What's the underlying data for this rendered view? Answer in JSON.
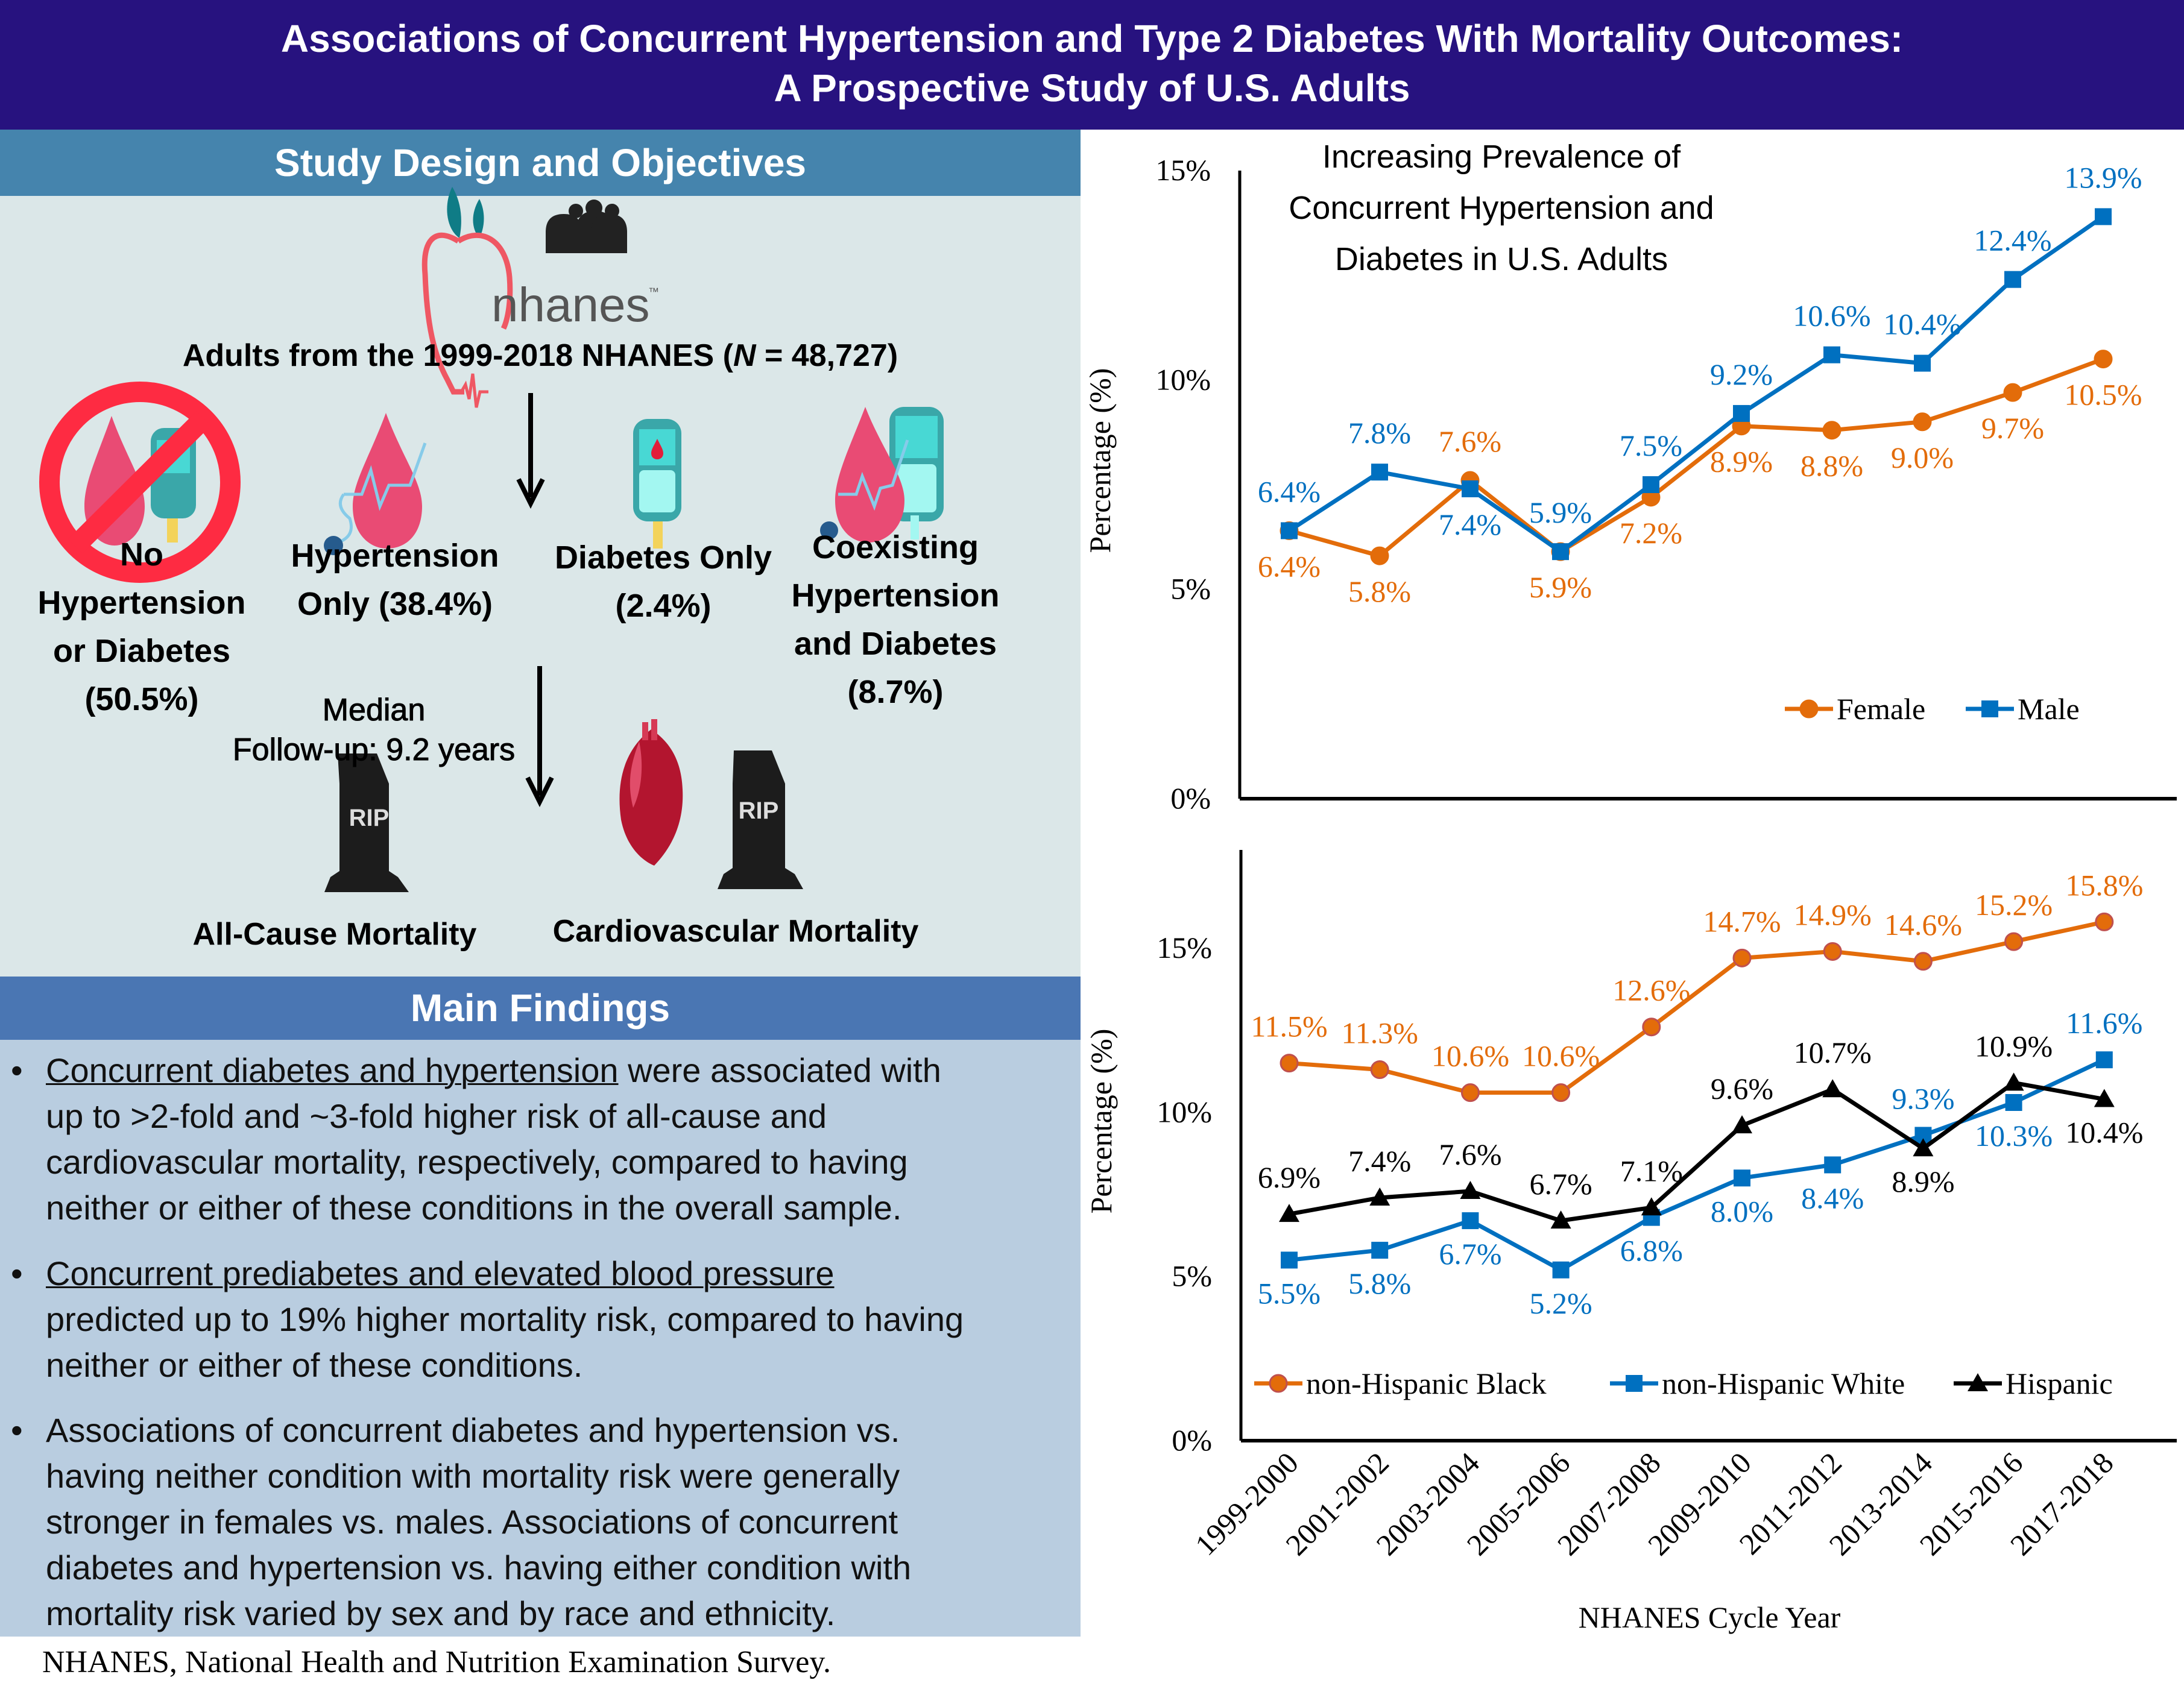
{
  "header": {
    "title_line1": "Associations of Concurrent Hypertension and Type 2 Diabetes With Mortality Outcomes:",
    "title_line2": "A Prospective Study of U.S. Adults"
  },
  "study_design": {
    "heading": "Study Design and Objectives",
    "logo_text": "nhanes",
    "logo_tm": "™",
    "population": "Adults from the 1999-2018 NHANES (",
    "population_n": "N",
    "population_rest": " = 48,727)",
    "groups": [
      {
        "lines": [
          "No",
          "Hypertension",
          "or Diabetes",
          "(50.5%)"
        ],
        "icon": "no-hypertension-diabetes-icon"
      },
      {
        "lines": [
          "Hypertension",
          "Only (38.4%)"
        ],
        "icon": "hypertension-icon"
      },
      {
        "lines": [
          "Diabetes Only",
          "(2.4%)"
        ],
        "icon": "glucometer-icon"
      },
      {
        "lines": [
          "Coexisting",
          "Hypertension",
          "and Diabetes",
          "(8.7%)"
        ],
        "icon": "hypertension-diabetes-icon"
      }
    ],
    "followup_line1": "Median",
    "followup_line2": "Follow-up: 9.2 years",
    "rip_text": "RIP",
    "outcomes": [
      "All-Cause Mortality",
      "Cardiovascular Mortality"
    ]
  },
  "main_findings": {
    "heading": "Main Findings",
    "bullets": [
      {
        "underlined": "Concurrent diabetes and hypertension",
        "lines": [
          " were associated with",
          "up to >2-fold and ~3-fold higher risk of all-cause and",
          "cardiovascular mortality, respectively, compared to having",
          "neither or either of these conditions in the overall sample."
        ]
      },
      {
        "underlined": "Concurrent prediabetes and elevated blood pressure",
        "lines": [
          "",
          "predicted up to 19% higher mortality risk, compared to having",
          "neither or either of these conditions."
        ]
      },
      {
        "underlined": "",
        "lines": [
          "Associations of concurrent diabetes and hypertension vs.",
          "having neither condition with mortality risk were generally",
          "stronger in females vs. males. Associations of concurrent",
          "diabetes and hypertension vs. having either condition with",
          "mortality risk varied by sex and by race and ethnicity."
        ]
      }
    ],
    "bullet_char": "•"
  },
  "footnote": "NHANES, National Health and Nutrition Examination Survey.",
  "colors": {
    "header_bg": "#27127f",
    "study_head_bg": "#4584ad",
    "study_body_bg": "#dbe7e8",
    "findings_head_bg": "#4a76b3",
    "findings_body_bg": "#b9cde0",
    "orange": "#e36c0a",
    "blue": "#0070c0",
    "black": "#000000"
  },
  "chart_data": [
    {
      "type": "line",
      "title": "Increasing Prevalence of Concurrent Hypertension and Diabetes in U.S. Adults",
      "title_lines": [
        "Increasing Prevalence of",
        "Concurrent Hypertension and",
        "Diabetes in U.S. Adults"
      ],
      "xlabel": "",
      "ylabel": "Percentage (%)",
      "ylim": [
        0,
        15
      ],
      "yticks": [
        "0%",
        "5%",
        "10%",
        "15%"
      ],
      "yticks_values": [
        0,
        5,
        10,
        15
      ],
      "grid": false,
      "legend_position": "bottom-right",
      "categories": [
        "1999-2000",
        "2001-2002",
        "2003-2004",
        "2005-2006",
        "2007-2008",
        "2009-2010",
        "2011-2012",
        "2013-2014",
        "2015-2016",
        "2017-2018"
      ],
      "series": [
        {
          "name": "Female",
          "marker": "circle",
          "color": "#e36c0a",
          "values": [
            6.4,
            5.8,
            7.6,
            5.9,
            7.2,
            8.9,
            8.8,
            9.0,
            9.7,
            10.5
          ],
          "labels": [
            "6.4%",
            "5.8%",
            "7.6%",
            "5.9%",
            "7.2%",
            "8.9%",
            "8.8%",
            "9.0%",
            "9.7%",
            "10.5%"
          ],
          "label_pos": [
            "below",
            "below",
            "above",
            "below",
            "below",
            "below",
            "below",
            "below",
            "below",
            "below"
          ]
        },
        {
          "name": "Male",
          "marker": "square",
          "color": "#0070c0",
          "values": [
            6.4,
            7.8,
            7.4,
            5.9,
            7.5,
            9.2,
            10.6,
            10.4,
            12.4,
            13.9
          ],
          "labels": [
            "6.4%",
            "7.8%",
            "7.4%",
            "5.9%",
            "7.5%",
            "9.2%",
            "10.6%",
            "10.4%",
            "12.4%",
            "13.9%"
          ],
          "label_pos": [
            "above",
            "above",
            "below",
            "above",
            "above",
            "above",
            "above",
            "above",
            "above",
            "above"
          ]
        }
      ]
    },
    {
      "type": "line",
      "title": "",
      "xlabel": "NHANES Cycle Year",
      "ylabel": "Percentage (%)",
      "ylim": [
        0,
        18
      ],
      "yticks": [
        "0%",
        "5%",
        "10%",
        "15%"
      ],
      "yticks_values": [
        0,
        5,
        10,
        15
      ],
      "grid": false,
      "legend_position": "bottom",
      "categories": [
        "1999-2000",
        "2001-2002",
        "2003-2004",
        "2005-2006",
        "2007-2008",
        "2009-2010",
        "2011-2012",
        "2013-2014",
        "2015-2016",
        "2017-2018"
      ],
      "series": [
        {
          "name": "non-Hispanic Black",
          "marker": "circle",
          "color": "#e36c0a",
          "values": [
            11.5,
            11.3,
            10.6,
            10.6,
            12.6,
            14.7,
            14.9,
            14.6,
            15.2,
            15.8
          ],
          "labels": [
            "11.5%",
            "11.3%",
            "10.6%",
            "10.6%",
            "12.6%",
            "14.7%",
            "14.9%",
            "14.6%",
            "15.2%",
            "15.8%"
          ],
          "label_pos": [
            "above",
            "above",
            "above",
            "above",
            "above",
            "above",
            "above",
            "above",
            "above",
            "above"
          ]
        },
        {
          "name": "non-Hispanic White",
          "marker": "square",
          "color": "#0070c0",
          "values": [
            5.5,
            5.8,
            6.7,
            5.2,
            6.8,
            8.0,
            8.4,
            9.3,
            10.3,
            11.6
          ],
          "labels": [
            "5.5%",
            "5.8%",
            "6.7%",
            "5.2%",
            "6.8%",
            "8.0%",
            "8.4%",
            "9.3%",
            "10.3%",
            "11.6%"
          ],
          "label_pos": [
            "below",
            "below",
            "below",
            "below",
            "below",
            "below",
            "below",
            "above",
            "below",
            "above"
          ]
        },
        {
          "name": "Hispanic",
          "marker": "triangle",
          "color": "#000000",
          "values": [
            6.9,
            7.4,
            7.6,
            6.7,
            7.1,
            9.6,
            10.7,
            8.9,
            10.9,
            10.4
          ],
          "labels": [
            "6.9%",
            "7.4%",
            "7.6%",
            "6.7%",
            "7.1%",
            "9.6%",
            "10.7%",
            "8.9%",
            "10.9%",
            "10.4%"
          ],
          "label_pos": [
            "above",
            "above",
            "above",
            "above",
            "above",
            "above",
            "above",
            "below",
            "above",
            "below"
          ]
        }
      ]
    }
  ]
}
